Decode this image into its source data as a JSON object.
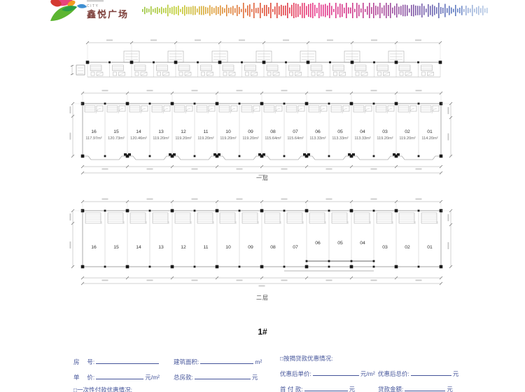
{
  "header": {
    "logo_city": "CITY",
    "logo_brand": "鑫悦广场",
    "wave_colors": [
      "#9bc53f",
      "#c2cf35",
      "#dfa23a",
      "#e06c3a",
      "#e0413d",
      "#e83a8c",
      "#d43a8c",
      "#a84a9c",
      "#7a5aa8",
      "#5b78c0",
      "#9fb8dc"
    ]
  },
  "plans": {
    "building_label": "1#",
    "mezzanine": {
      "modules": 16
    },
    "floor1": {
      "label": "一层",
      "units": [
        {
          "no": "16",
          "area": "117.97m²"
        },
        {
          "no": "15",
          "area": "120.73m²"
        },
        {
          "no": "14",
          "area": "120.46m²"
        },
        {
          "no": "13",
          "area": "119.20m²"
        },
        {
          "no": "12",
          "area": "119.20m²"
        },
        {
          "no": "11",
          "area": "119.20m²"
        },
        {
          "no": "10",
          "area": "119.20m²"
        },
        {
          "no": "09",
          "area": "119.20m²"
        },
        {
          "no": "08",
          "area": "115.64m²"
        },
        {
          "no": "07",
          "area": "115.64m²"
        },
        {
          "no": "06",
          "area": "113.33m²"
        },
        {
          "no": "05",
          "area": "113.33m²"
        },
        {
          "no": "04",
          "area": "113.33m²"
        },
        {
          "no": "03",
          "area": "119.20m²"
        },
        {
          "no": "02",
          "area": "119.20m²"
        },
        {
          "no": "01",
          "area": "114.20m²"
        }
      ]
    },
    "floor2": {
      "label": "二层",
      "units": [
        {
          "no": "16",
          "short": false
        },
        {
          "no": "15",
          "short": false
        },
        {
          "no": "14",
          "short": false
        },
        {
          "no": "13",
          "short": false
        },
        {
          "no": "12",
          "short": false
        },
        {
          "no": "11",
          "short": false
        },
        {
          "no": "10",
          "short": false
        },
        {
          "no": "09",
          "short": false
        },
        {
          "no": "08",
          "short": false
        },
        {
          "no": "07",
          "short": false
        },
        {
          "no": "06",
          "short": true
        },
        {
          "no": "05",
          "short": true
        },
        {
          "no": "04",
          "short": true
        },
        {
          "no": "03",
          "short": false
        },
        {
          "no": "02",
          "short": false
        },
        {
          "no": "01",
          "short": false
        }
      ]
    }
  },
  "form": {
    "left": {
      "room_label": "房　 号:",
      "area_label": "建筑面积:",
      "area_unit": "m²",
      "price_label": "单　 价:",
      "price_unit": "元/m²",
      "total_label": "总房款:",
      "total_unit": "元",
      "onetime_label": "□一次性付款优惠情况:"
    },
    "right": {
      "mortgage_label": "□按揭贷款优惠情况:",
      "disc_price_label": "优惠后单价:",
      "disc_price_unit": "元/m²",
      "disc_total_label": "优惠后总价:",
      "disc_total_unit": "元",
      "down_label": "首 付 款:",
      "down_unit": "元",
      "loan_label": "贷款金额:",
      "loan_unit": "元"
    }
  }
}
